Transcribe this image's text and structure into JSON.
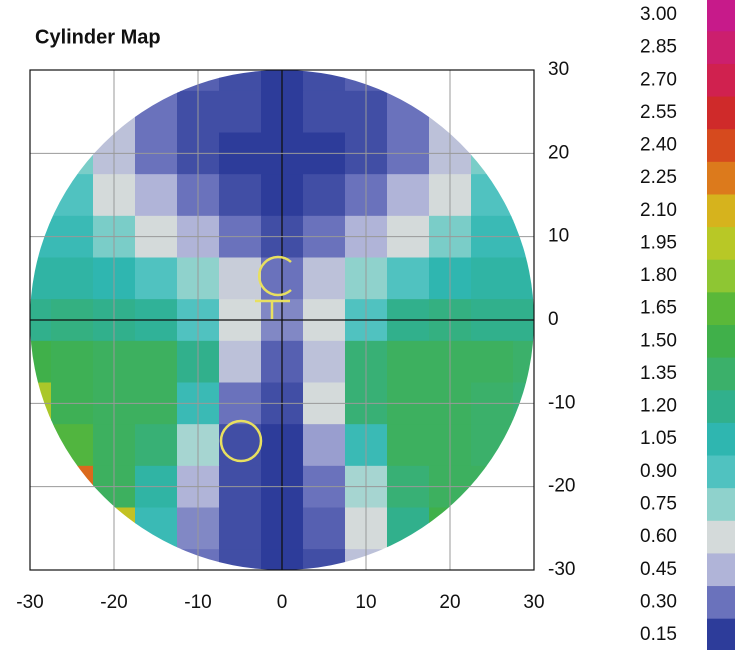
{
  "chart_data": {
    "type": "heatmap",
    "title": "Cylinder Map",
    "x": [
      -30,
      -25,
      -20,
      -15,
      -10,
      -5,
      0,
      5,
      10,
      15,
      20,
      25,
      30
    ],
    "y": [
      30,
      25,
      20,
      15,
      10,
      5,
      0,
      -5,
      -10,
      -15,
      -20,
      -25,
      -30
    ],
    "z": [
      [
        null,
        null,
        null,
        null,
        0.25,
        0.2,
        0.15,
        0.2,
        0.25,
        null,
        null,
        null,
        null
      ],
      [
        null,
        null,
        0.5,
        0.3,
        0.2,
        0.2,
        0.15,
        0.2,
        0.2,
        0.3,
        0.5,
        null,
        null
      ],
      [
        null,
        0.8,
        0.5,
        0.3,
        0.2,
        0.15,
        0.15,
        0.15,
        0.2,
        0.3,
        0.5,
        0.8,
        null
      ],
      [
        null,
        0.9,
        0.6,
        0.45,
        0.3,
        0.2,
        0.15,
        0.2,
        0.3,
        0.45,
        0.6,
        0.9,
        null
      ],
      [
        1.0,
        1.0,
        0.8,
        0.6,
        0.45,
        0.3,
        0.2,
        0.3,
        0.45,
        0.6,
        0.8,
        1.0,
        1.0
      ],
      [
        1.1,
        1.1,
        1.05,
        0.9,
        0.75,
        0.55,
        0.3,
        0.5,
        0.75,
        0.9,
        1.05,
        1.1,
        1.1
      ],
      [
        1.2,
        1.25,
        1.2,
        1.15,
        0.9,
        0.6,
        0.35,
        0.6,
        0.9,
        1.2,
        1.25,
        1.2,
        1.2
      ],
      [
        1.5,
        1.45,
        1.4,
        1.4,
        1.2,
        0.5,
        0.25,
        0.5,
        1.3,
        1.4,
        1.4,
        1.4,
        1.35
      ],
      [
        1.9,
        1.45,
        1.4,
        1.4,
        1.0,
        0.3,
        0.2,
        0.6,
        1.3,
        1.4,
        1.4,
        1.35,
        1.3
      ],
      [
        null,
        1.6,
        1.4,
        1.3,
        0.7,
        0.2,
        0.15,
        0.4,
        1.0,
        1.4,
        1.4,
        1.35,
        null
      ],
      [
        null,
        2.3,
        1.4,
        1.1,
        0.45,
        0.2,
        0.15,
        0.3,
        0.7,
        1.3,
        1.4,
        1.4,
        null
      ],
      [
        null,
        null,
        2.0,
        1.0,
        0.35,
        0.2,
        0.15,
        0.25,
        0.6,
        1.2,
        1.5,
        null,
        null
      ],
      [
        null,
        null,
        null,
        null,
        0.3,
        0.2,
        0.15,
        0.2,
        0.5,
        null,
        null,
        null,
        null
      ]
    ],
    "xlim": [
      -30,
      30
    ],
    "ylim": [
      -30,
      30
    ],
    "xticks": [
      -30,
      -20,
      -10,
      0,
      10,
      20,
      30
    ],
    "yticks": [
      30,
      20,
      10,
      0,
      -10,
      -20,
      -30
    ],
    "grid": true,
    "colorbar": {
      "ticks": [
        {
          "value": 3,
          "label": "3.00"
        },
        {
          "value": 2.85,
          "label": "2.85"
        },
        {
          "value": 2.7,
          "label": "2.70"
        },
        {
          "value": 2.55,
          "label": "2.55"
        },
        {
          "value": 2.4,
          "label": "2.40"
        },
        {
          "value": 2.25,
          "label": "2.25"
        },
        {
          "value": 2.1,
          "label": "2.10"
        },
        {
          "value": 1.95,
          "label": "1.95"
        },
        {
          "value": 1.8,
          "label": "1.80"
        },
        {
          "value": 1.65,
          "label": "1.65"
        },
        {
          "value": 1.5,
          "label": "1.50"
        },
        {
          "value": 1.35,
          "label": "1.35"
        },
        {
          "value": 1.2,
          "label": "1.20"
        },
        {
          "value": 1.05,
          "label": "1.05"
        },
        {
          "value": 0.9,
          "label": "0.90"
        },
        {
          "value": 0.75,
          "label": "0.75"
        },
        {
          "value": 0.6,
          "label": "0.60"
        },
        {
          "value": 0.45,
          "label": "0.45"
        },
        {
          "value": 0.3,
          "label": "0.30"
        },
        {
          "value": 0.15,
          "label": "0.15"
        }
      ],
      "colors": [
        "#c71a8a",
        "#cc1f6e",
        "#d0214f",
        "#cf2a2a",
        "#d64a1e",
        "#dc7a1c",
        "#d6b31d",
        "#b8c826",
        "#8ec633",
        "#5ab839",
        "#40b04a",
        "#3bb06a",
        "#31b08c",
        "#2fb6b0",
        "#50c2c0",
        "#8fd2cc",
        "#d4dada",
        "#b0b4d8",
        "#6a72bc",
        "#2d3c9a"
      ]
    }
  }
}
